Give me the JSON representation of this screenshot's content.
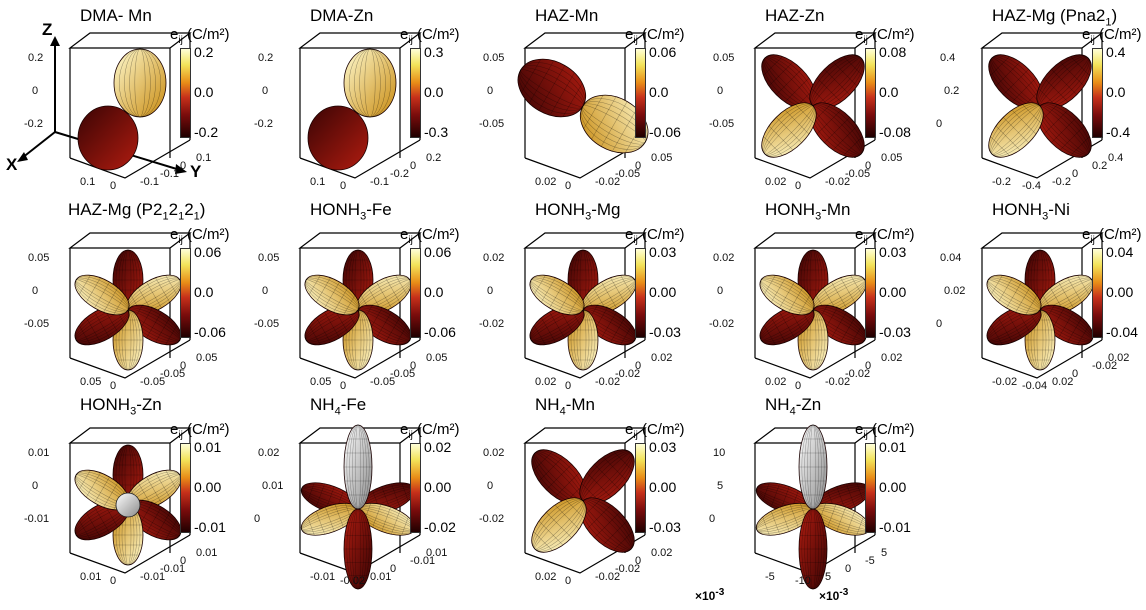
{
  "colorbar_unit": "(C/m²)",
  "colorbar_symbol": "e",
  "colorbar_symbol_sub": "ij",
  "axis_labels": {
    "z": "Z",
    "x": "X",
    "y": "Y"
  },
  "colormap": [
    "#ffffd8",
    "#f3e35a",
    "#e98e18",
    "#c6301a",
    "#7a0c0c",
    "#200000"
  ],
  "panels": [
    {
      "title": "DMA- Mn",
      "shape": "dipole",
      "cb": [
        "0.2",
        "0.0",
        "-0.2"
      ],
      "ticks": [
        "0.2",
        "0",
        "-0.2",
        "0.1",
        "0",
        "-0.1",
        "-0.1",
        "0",
        "0.1"
      ],
      "sci": ""
    },
    {
      "title": "DMA-Zn",
      "shape": "dipole",
      "cb": [
        "0.3",
        "0.0",
        "-0.3"
      ],
      "ticks": [
        "0.2",
        "0",
        "-0.2",
        "0.1",
        "0",
        "-0.1",
        "-0.2",
        "0",
        "0.2"
      ],
      "sci": ""
    },
    {
      "title": "HAZ-Mn",
      "shape": "two",
      "cb": [
        "0.06",
        "0.0",
        "-0.06"
      ],
      "ticks": [
        "0.05",
        "0",
        "-0.05",
        "0.02",
        "0",
        "-0.02",
        "-0.05",
        "0",
        "0.05"
      ],
      "sci": ""
    },
    {
      "title": "HAZ-Zn",
      "shape": "four",
      "cb": [
        "0.08",
        "0.0",
        "-0.08"
      ],
      "ticks": [
        "0.05",
        "0",
        "-0.05",
        "0.02",
        "0",
        "-0.02",
        "-0.05",
        "0",
        "0.05"
      ],
      "sci": ""
    },
    {
      "title": "HAZ-Mg (Pna2",
      "title_sub": "1",
      "title_end": ")",
      "shape": "four",
      "cb": [
        "0.4",
        "0.0",
        "-0.4"
      ],
      "ticks": [
        "0.4",
        "0.2",
        "0",
        "-0.2",
        "-0.4",
        "-0.2",
        "0",
        "0.2",
        "0.4"
      ],
      "sci": ""
    },
    {
      "title": "HAZ-Mg (P2",
      "title_sub": "1",
      "title_mid": "2",
      "title_sub2": "1",
      "title_mid2": "2",
      "title_sub3": "1",
      "title_end": ")",
      "shape": "six",
      "cb": [
        "0.06",
        "0.0",
        "-0.06"
      ],
      "ticks": [
        "0.05",
        "0",
        "-0.05",
        "0.05",
        "0",
        "-0.05",
        "-0.05",
        "0",
        "0.05"
      ],
      "sci": ""
    },
    {
      "title": "HONH",
      "title_sub": "3",
      "title_end": "-Fe",
      "shape": "six",
      "cb": [
        "0.06",
        "0.0",
        "-0.06"
      ],
      "ticks": [
        "0.05",
        "0",
        "-0.05",
        "0.05",
        "0",
        "-0.05",
        "-0.05",
        "0",
        "0.05"
      ],
      "sci": ""
    },
    {
      "title": "HONH",
      "title_sub": "3",
      "title_end": "-Mg",
      "shape": "six",
      "cb": [
        "0.03",
        "0.00",
        "-0.03"
      ],
      "ticks": [
        "0.02",
        "0",
        "-0.02",
        "0.02",
        "0",
        "-0.02",
        "-0.02",
        "0",
        "0.02"
      ],
      "sci": ""
    },
    {
      "title": "HONH",
      "title_sub": "3",
      "title_end": "-Mn",
      "shape": "six",
      "cb": [
        "0.03",
        "0.00",
        "-0.03"
      ],
      "ticks": [
        "0.02",
        "0",
        "-0.02",
        "0.02",
        "0",
        "-0.02",
        "-0.02",
        "0",
        "0.02"
      ],
      "sci": ""
    },
    {
      "title": "HONH",
      "title_sub": "3",
      "title_end": "-Ni",
      "shape": "six",
      "cb": [
        "0.04",
        "0.00",
        "-0.04"
      ],
      "ticks": [
        "0.04",
        "0.02",
        "0",
        "-0.02",
        "-0.04",
        "0.02",
        "0",
        "-0.02",
        "0.02"
      ],
      "sci": ""
    },
    {
      "title": "HONH",
      "title_sub": "3",
      "title_end": "-Zn",
      "shape": "sixwhite",
      "cb": [
        "0.01",
        "0.00",
        "-0.01"
      ],
      "ticks": [
        "0.01",
        "0",
        "-0.01",
        "0.01",
        "0",
        "-0.01",
        "-0.01",
        "0",
        "0.01"
      ],
      "sci": ""
    },
    {
      "title": "NH",
      "title_sub": "4",
      "title_end": "-Fe",
      "shape": "vert",
      "cb": [
        "0.02",
        "0.00",
        "-0.02"
      ],
      "ticks": [
        "0.02",
        "0.01",
        "0",
        "-0.01",
        "-0.02",
        "0.01",
        "0",
        "-0.01",
        "0.01"
      ],
      "sci": ""
    },
    {
      "title": "NH",
      "title_sub": "4",
      "title_end": "-Mn",
      "shape": "four",
      "cb": [
        "0.03",
        "0.00",
        "-0.03"
      ],
      "ticks": [
        "0.02",
        "0",
        "-0.02",
        "0.02",
        "0",
        "-0.02",
        "-0.02",
        "0",
        "0.02"
      ],
      "sci": ""
    },
    {
      "title": "NH",
      "title_sub": "4",
      "title_end": "-Zn",
      "shape": "vert",
      "cb": [
        "0.01",
        "0.00",
        "-0.01"
      ],
      "ticks": [
        "10",
        "5",
        "0",
        "-5",
        "-10",
        "5",
        "0",
        "-5",
        "5"
      ],
      "sci": "×10",
      "sci_exp": "-3"
    }
  ]
}
